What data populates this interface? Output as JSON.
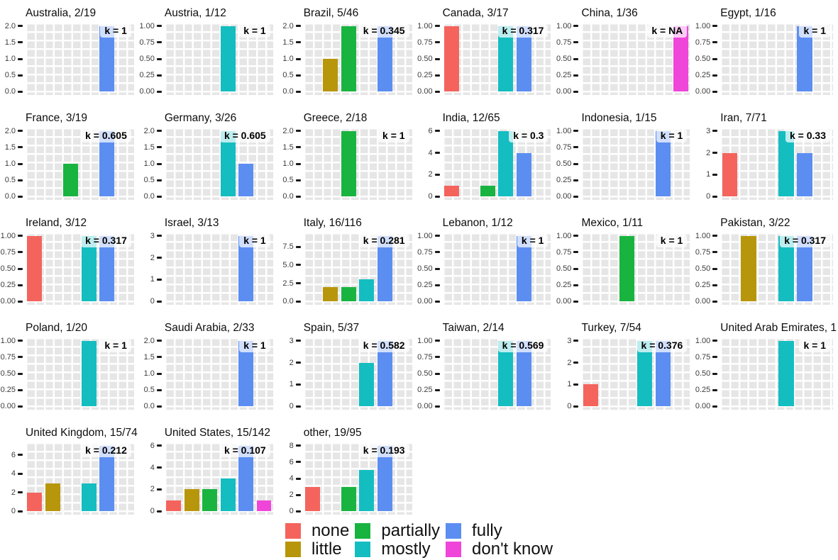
{
  "chart_data": {
    "type": "bar",
    "layout": {
      "facet_grid_columns": 6,
      "legend_position": "bottom",
      "panel_grid": "white on light gray"
    },
    "categories": [
      "none",
      "little",
      "partially",
      "mostly",
      "fully",
      "dont_know"
    ],
    "colors": {
      "none": "#F4645D",
      "little": "#B7960B",
      "partially": "#19B440",
      "mostly": "#14BDC0",
      "fully": "#5C8EF2",
      "dont_know": "#EF46D9"
    },
    "legend": {
      "items": [
        {
          "key": "none",
          "label": "none"
        },
        {
          "key": "little",
          "label": "little"
        },
        {
          "key": "partially",
          "label": "partially"
        },
        {
          "key": "mostly",
          "label": "mostly"
        },
        {
          "key": "fully",
          "label": "fully"
        },
        {
          "key": "dont_know",
          "label": "don't know"
        }
      ]
    },
    "panels": [
      {
        "title": "Australia, 2/19",
        "k_label": "k = 1",
        "ymax": 2,
        "tick_labels": [
          "2.0",
          "1.5",
          "1.0",
          "0.5",
          "0.0"
        ],
        "tick_values": [
          2,
          1.5,
          1,
          0.5,
          0
        ],
        "bars": [
          {
            "cat": "fully",
            "value": 2
          }
        ]
      },
      {
        "title": "Austria, 1/12",
        "k_label": "k = 1",
        "ymax": 1,
        "tick_labels": [
          "1.00",
          "0.75",
          "0.50",
          "0.25",
          "0.00"
        ],
        "tick_values": [
          1,
          0.75,
          0.5,
          0.25,
          0
        ],
        "bars": [
          {
            "cat": "mostly",
            "value": 1
          }
        ]
      },
      {
        "title": "Brazil, 5/46",
        "k_label": "k = 0.345",
        "ymax": 2,
        "tick_labels": [
          "2.0",
          "1.5",
          "1.0",
          "0.5",
          "0.0"
        ],
        "tick_values": [
          2,
          1.5,
          1,
          0.5,
          0
        ],
        "bars": [
          {
            "cat": "little",
            "value": 1
          },
          {
            "cat": "partially",
            "value": 2
          },
          {
            "cat": "fully",
            "value": 2
          }
        ]
      },
      {
        "title": "Canada, 3/17",
        "k_label": "k = 0.317",
        "ymax": 1,
        "tick_labels": [
          "1.00",
          "0.75",
          "0.50",
          "0.25",
          "0.00"
        ],
        "tick_values": [
          1,
          0.75,
          0.5,
          0.25,
          0
        ],
        "bars": [
          {
            "cat": "none",
            "value": 1
          },
          {
            "cat": "mostly",
            "value": 1
          },
          {
            "cat": "fully",
            "value": 1
          }
        ]
      },
      {
        "title": "China, 1/36",
        "k_label": "k = NA",
        "ymax": 1,
        "tick_labels": [
          "1.00",
          "0.75",
          "0.50",
          "0.25",
          "0.00"
        ],
        "tick_values": [
          1,
          0.75,
          0.5,
          0.25,
          0
        ],
        "bars": [
          {
            "cat": "dont_know",
            "value": 1
          }
        ]
      },
      {
        "title": "Egypt, 1/16",
        "k_label": "k = 1",
        "ymax": 1,
        "tick_labels": [
          "1.00",
          "0.75",
          "0.50",
          "0.25",
          "0.00"
        ],
        "tick_values": [
          1,
          0.75,
          0.5,
          0.25,
          0
        ],
        "bars": [
          {
            "cat": "fully",
            "value": 1
          }
        ]
      },
      {
        "title": "France, 3/19",
        "k_label": "k = 0.605",
        "ymax": 2,
        "tick_labels": [
          "2.0",
          "1.5",
          "1.0",
          "0.5",
          "0.0"
        ],
        "tick_values": [
          2,
          1.5,
          1,
          0.5,
          0
        ],
        "bars": [
          {
            "cat": "partially",
            "value": 1
          },
          {
            "cat": "fully",
            "value": 2
          }
        ]
      },
      {
        "title": "Germany, 3/26",
        "k_label": "k = 0.605",
        "ymax": 2,
        "tick_labels": [
          "2.0",
          "1.5",
          "1.0",
          "0.5",
          "0.0"
        ],
        "tick_values": [
          2,
          1.5,
          1,
          0.5,
          0
        ],
        "bars": [
          {
            "cat": "mostly",
            "value": 2
          },
          {
            "cat": "fully",
            "value": 1
          }
        ]
      },
      {
        "title": "Greece, 2/18",
        "k_label": "k = 1",
        "ymax": 2,
        "tick_labels": [
          "2.0",
          "1.5",
          "1.0",
          "0.5",
          "0.0"
        ],
        "tick_values": [
          2,
          1.5,
          1,
          0.5,
          0
        ],
        "bars": [
          {
            "cat": "partially",
            "value": 2
          }
        ]
      },
      {
        "title": "India, 12/65",
        "k_label": "k = 0.3",
        "ymax": 6,
        "tick_labels": [
          "6",
          "4",
          "2",
          "0"
        ],
        "tick_values": [
          6,
          4,
          2,
          0
        ],
        "bars": [
          {
            "cat": "none",
            "value": 1
          },
          {
            "cat": "partially",
            "value": 1
          },
          {
            "cat": "mostly",
            "value": 6
          },
          {
            "cat": "fully",
            "value": 4
          }
        ]
      },
      {
        "title": "Indonesia, 1/15",
        "k_label": "k = 1",
        "ymax": 1,
        "tick_labels": [
          "1.00",
          "0.75",
          "0.50",
          "0.25",
          "0.00"
        ],
        "tick_values": [
          1,
          0.75,
          0.5,
          0.25,
          0
        ],
        "bars": [
          {
            "cat": "fully",
            "value": 1
          }
        ]
      },
      {
        "title": "Iran, 7/71",
        "k_label": "k = 0.33",
        "ymax": 3,
        "tick_labels": [
          "3",
          "2",
          "1",
          "0"
        ],
        "tick_values": [
          3,
          2,
          1,
          0
        ],
        "bars": [
          {
            "cat": "none",
            "value": 2
          },
          {
            "cat": "mostly",
            "value": 3
          },
          {
            "cat": "fully",
            "value": 2
          }
        ]
      },
      {
        "title": "Ireland, 3/12",
        "k_label": "k = 0.317",
        "ymax": 1,
        "tick_labels": [
          "1.00",
          "0.75",
          "0.50",
          "0.25",
          "0.00"
        ],
        "tick_values": [
          1,
          0.75,
          0.5,
          0.25,
          0
        ],
        "bars": [
          {
            "cat": "none",
            "value": 1
          },
          {
            "cat": "mostly",
            "value": 1
          },
          {
            "cat": "fully",
            "value": 1
          }
        ]
      },
      {
        "title": "Israel, 3/13",
        "k_label": "k = 1",
        "ymax": 3,
        "tick_labels": [
          "3",
          "2",
          "1",
          "0"
        ],
        "tick_values": [
          3,
          2,
          1,
          0
        ],
        "bars": [
          {
            "cat": "fully",
            "value": 3
          }
        ]
      },
      {
        "title": "Italy, 16/116",
        "k_label": "k = 0.281",
        "ymax": 9,
        "tick_labels": [
          "7.5",
          "5.0",
          "2.5",
          "0.0"
        ],
        "tick_values": [
          7.5,
          5,
          2.5,
          0
        ],
        "bars": [
          {
            "cat": "little",
            "value": 2
          },
          {
            "cat": "partially",
            "value": 2
          },
          {
            "cat": "mostly",
            "value": 3
          },
          {
            "cat": "fully",
            "value": 9
          }
        ]
      },
      {
        "title": "Lebanon, 1/12",
        "k_label": "k = 1",
        "ymax": 1,
        "tick_labels": [
          "1.00",
          "0.75",
          "0.50",
          "0.25",
          "0.00"
        ],
        "tick_values": [
          1,
          0.75,
          0.5,
          0.25,
          0
        ],
        "bars": [
          {
            "cat": "fully",
            "value": 1
          }
        ]
      },
      {
        "title": "Mexico, 1/11",
        "k_label": "k = 1",
        "ymax": 1,
        "tick_labels": [
          "1.00",
          "0.75",
          "0.50",
          "0.25",
          "0.00"
        ],
        "tick_values": [
          1,
          0.75,
          0.5,
          0.25,
          0
        ],
        "bars": [
          {
            "cat": "partially",
            "value": 1
          }
        ]
      },
      {
        "title": "Pakistan, 3/22",
        "k_label": "k = 0.317",
        "ymax": 1,
        "tick_labels": [
          "1.00",
          "0.75",
          "0.50",
          "0.25",
          "0.00"
        ],
        "tick_values": [
          1,
          0.75,
          0.5,
          0.25,
          0
        ],
        "bars": [
          {
            "cat": "little",
            "value": 1
          },
          {
            "cat": "mostly",
            "value": 1
          },
          {
            "cat": "fully",
            "value": 1
          }
        ]
      },
      {
        "title": "Poland, 1/20",
        "k_label": "k = 1",
        "ymax": 1,
        "tick_labels": [
          "1.00",
          "0.75",
          "0.50",
          "0.25",
          "0.00"
        ],
        "tick_values": [
          1,
          0.75,
          0.5,
          0.25,
          0
        ],
        "bars": [
          {
            "cat": "mostly",
            "value": 1
          }
        ]
      },
      {
        "title": "Saudi Arabia, 2/33",
        "k_label": "k = 1",
        "ymax": 2,
        "tick_labels": [
          "2.0",
          "1.5",
          "1.0",
          "0.5",
          "0.0"
        ],
        "tick_values": [
          2,
          1.5,
          1,
          0.5,
          0
        ],
        "bars": [
          {
            "cat": "fully",
            "value": 2
          }
        ]
      },
      {
        "title": "Spain, 5/37",
        "k_label": "k = 0.582",
        "ymax": 3,
        "tick_labels": [
          "3",
          "2",
          "1",
          "0"
        ],
        "tick_values": [
          3,
          2,
          1,
          0
        ],
        "bars": [
          {
            "cat": "mostly",
            "value": 2
          },
          {
            "cat": "fully",
            "value": 3
          }
        ]
      },
      {
        "title": "Taiwan, 2/14",
        "k_label": "k = 0.569",
        "ymax": 1,
        "tick_labels": [
          "1.00",
          "0.75",
          "0.50",
          "0.25",
          "0.00"
        ],
        "tick_values": [
          1,
          0.75,
          0.5,
          0.25,
          0
        ],
        "bars": [
          {
            "cat": "mostly",
            "value": 1
          },
          {
            "cat": "fully",
            "value": 1
          }
        ]
      },
      {
        "title": "Turkey, 7/54",
        "k_label": "k = 0.376",
        "ymax": 3,
        "tick_labels": [
          "3",
          "2",
          "1",
          "0"
        ],
        "tick_values": [
          3,
          2,
          1,
          0
        ],
        "bars": [
          {
            "cat": "none",
            "value": 1
          },
          {
            "cat": "mostly",
            "value": 3
          },
          {
            "cat": "fully",
            "value": 3
          }
        ]
      },
      {
        "title": "United Arab Emirates, 1",
        "k_label": "k = 1",
        "ymax": 1,
        "tick_labels": [
          "1.00",
          "0.75",
          "0.50",
          "0.25",
          "0.00"
        ],
        "tick_values": [
          1,
          0.75,
          0.5,
          0.25,
          0
        ],
        "bars": [
          {
            "cat": "mostly",
            "value": 1
          }
        ]
      },
      {
        "title": "United Kingdom, 15/74",
        "k_label": "k = 0.212",
        "ymax": 7,
        "tick_labels": [
          "6",
          "4",
          "2",
          "0"
        ],
        "tick_values": [
          6,
          4,
          2,
          0
        ],
        "bars": [
          {
            "cat": "none",
            "value": 2
          },
          {
            "cat": "little",
            "value": 3
          },
          {
            "cat": "mostly",
            "value": 3
          },
          {
            "cat": "fully",
            "value": 7
          }
        ]
      },
      {
        "title": "United States, 15/142",
        "k_label": "k = 0.107",
        "ymax": 6,
        "tick_labels": [
          "6",
          "4",
          "2",
          "0"
        ],
        "tick_values": [
          6,
          4,
          2,
          0
        ],
        "bars": [
          {
            "cat": "none",
            "value": 1
          },
          {
            "cat": "little",
            "value": 2
          },
          {
            "cat": "partially",
            "value": 2
          },
          {
            "cat": "mostly",
            "value": 3
          },
          {
            "cat": "fully",
            "value": 6
          },
          {
            "cat": "dont_know",
            "value": 1
          }
        ]
      },
      {
        "title": "other, 19/95",
        "k_label": "k = 0.193",
        "ymax": 8,
        "tick_labels": [
          "8",
          "6",
          "4",
          "2",
          "0"
        ],
        "tick_values": [
          8,
          6,
          4,
          2,
          0
        ],
        "bars": [
          {
            "cat": "none",
            "value": 3
          },
          {
            "cat": "partially",
            "value": 3
          },
          {
            "cat": "mostly",
            "value": 5
          },
          {
            "cat": "fully",
            "value": 8
          }
        ]
      }
    ]
  }
}
